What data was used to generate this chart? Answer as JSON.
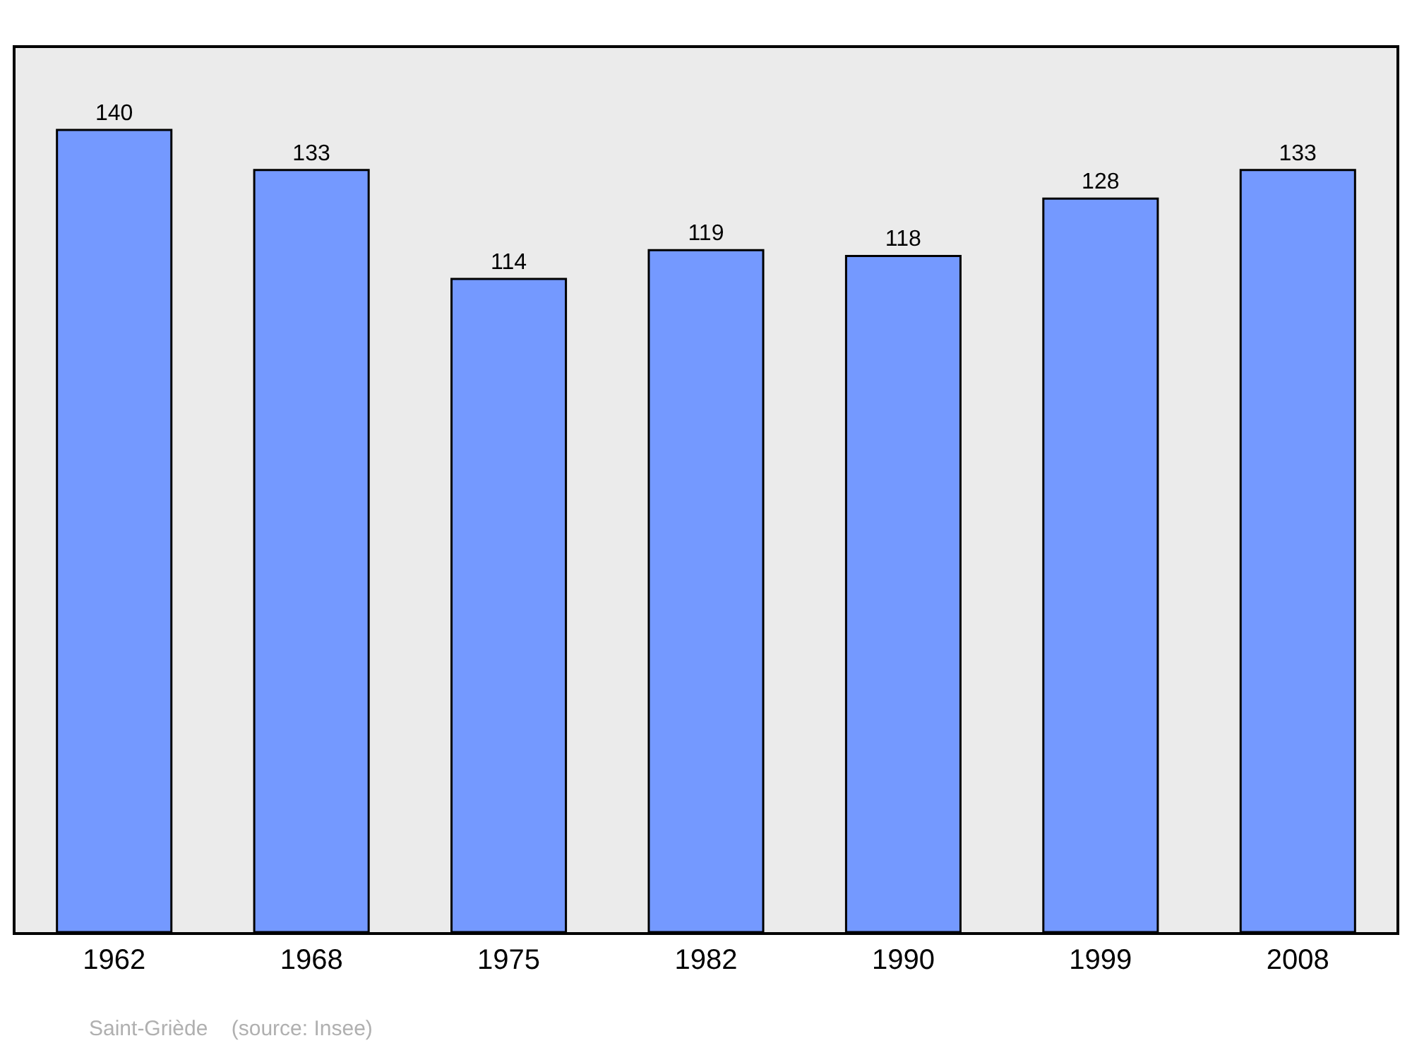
{
  "chart_data": {
    "type": "bar",
    "categories": [
      "1962",
      "1968",
      "1975",
      "1982",
      "1990",
      "1999",
      "2008"
    ],
    "values": [
      140,
      133,
      114,
      119,
      118,
      128,
      133
    ],
    "color": "#7499ff",
    "data_labels": true,
    "grid": false,
    "legend": false,
    "annotations": [
      "Saint-Griède    (source: Insee)"
    ]
  }
}
